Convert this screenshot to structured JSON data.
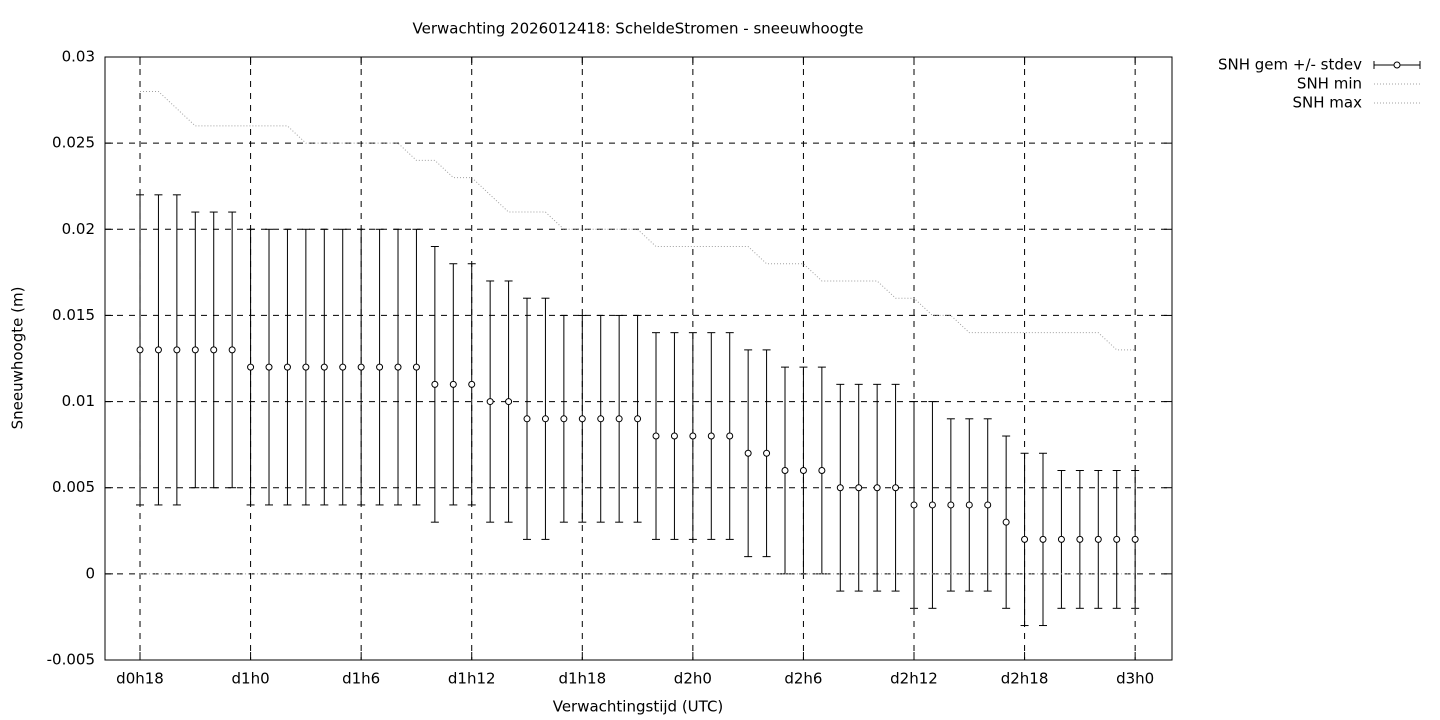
{
  "chart_data": {
    "type": "errorbar",
    "title": "Verwachting 2026012418: ScheldeStromen - sneeuwhoogte",
    "x_label": "Verwachtingstijd (UTC)",
    "y_label": "Sneeuwhoogte (m)",
    "x": [
      18,
      19,
      20,
      21,
      22,
      23,
      24,
      25,
      26,
      27,
      28,
      29,
      30,
      31,
      32,
      33,
      34,
      35,
      36,
      37,
      38,
      39,
      40,
      41,
      42,
      43,
      44,
      45,
      46,
      47,
      48,
      49,
      50,
      51,
      52,
      53,
      54,
      55,
      56,
      57,
      58,
      59,
      60,
      61,
      62,
      63,
      64,
      65,
      66,
      67,
      68,
      69,
      70,
      71,
      72
    ],
    "series": [
      {
        "name": "SNH gem +/- stdev",
        "color": "#000000",
        "values": [
          0.013,
          0.013,
          0.013,
          0.013,
          0.013,
          0.013,
          0.012,
          0.012,
          0.012,
          0.012,
          0.012,
          0.012,
          0.012,
          0.012,
          0.012,
          0.012,
          0.011,
          0.011,
          0.011,
          0.01,
          0.01,
          0.009,
          0.009,
          0.009,
          0.009,
          0.009,
          0.009,
          0.009,
          0.008,
          0.008,
          0.008,
          0.008,
          0.008,
          0.007,
          0.007,
          0.006,
          0.006,
          0.006,
          0.005,
          0.005,
          0.005,
          0.005,
          0.004,
          0.004,
          0.004,
          0.004,
          0.004,
          0.003,
          0.002,
          0.002,
          0.002,
          0.002,
          0.002,
          0.002,
          0.002
        ],
        "errors": [
          0.009,
          0.009,
          0.009,
          0.008,
          0.008,
          0.008,
          0.008,
          0.008,
          0.008,
          0.008,
          0.008,
          0.008,
          0.008,
          0.008,
          0.008,
          0.008,
          0.008,
          0.007,
          0.007,
          0.007,
          0.007,
          0.007,
          0.007,
          0.006,
          0.006,
          0.006,
          0.006,
          0.006,
          0.006,
          0.006,
          0.006,
          0.006,
          0.006,
          0.006,
          0.006,
          0.006,
          0.006,
          0.006,
          0.006,
          0.006,
          0.006,
          0.006,
          0.006,
          0.006,
          0.005,
          0.005,
          0.005,
          0.005,
          0.005,
          0.005,
          0.004,
          0.004,
          0.004,
          0.004,
          0.004
        ]
      },
      {
        "name": "SNH min",
        "color": "#a0a0a0",
        "values": [
          0,
          0,
          0,
          0,
          0,
          0,
          0,
          0,
          0,
          0,
          0,
          0,
          0,
          0,
          0,
          0,
          0,
          0,
          0,
          0,
          0,
          0,
          0,
          0,
          0,
          0,
          0,
          0,
          0,
          0,
          0,
          0,
          0,
          0,
          0,
          0,
          0,
          0,
          0,
          0,
          0,
          0,
          0,
          0,
          0,
          0,
          0,
          0,
          0,
          0,
          0,
          0,
          0,
          0,
          0
        ]
      },
      {
        "name": "SNH max",
        "color": "#a0a0a0",
        "values": [
          0.028,
          0.028,
          0.027,
          0.026,
          0.026,
          0.026,
          0.026,
          0.026,
          0.026,
          0.025,
          0.025,
          0.025,
          0.025,
          0.025,
          0.025,
          0.024,
          0.024,
          0.023,
          0.023,
          0.022,
          0.021,
          0.021,
          0.021,
          0.02,
          0.02,
          0.02,
          0.02,
          0.02,
          0.019,
          0.019,
          0.019,
          0.019,
          0.019,
          0.019,
          0.018,
          0.018,
          0.018,
          0.017,
          0.017,
          0.017,
          0.017,
          0.016,
          0.016,
          0.015,
          0.015,
          0.014,
          0.014,
          0.014,
          0.014,
          0.014,
          0.014,
          0.014,
          0.014,
          0.013,
          0.013
        ]
      }
    ],
    "xlim": [
      16.1,
      74
    ],
    "xticks": [
      {
        "value": 18,
        "label": "d0h18"
      },
      {
        "value": 24,
        "label": "d1h0"
      },
      {
        "value": 30,
        "label": "d1h6"
      },
      {
        "value": 36,
        "label": "d1h12"
      },
      {
        "value": 42,
        "label": "d1h18"
      },
      {
        "value": 48,
        "label": "d2h0"
      },
      {
        "value": 54,
        "label": "d2h6"
      },
      {
        "value": 60,
        "label": "d2h12"
      },
      {
        "value": 66,
        "label": "d2h18"
      },
      {
        "value": 72,
        "label": "d3h0"
      }
    ],
    "ylim": [
      -0.005,
      0.03
    ],
    "yticks": [
      -0.005,
      0,
      0.005,
      0.01,
      0.015,
      0.02,
      0.025,
      0.03
    ],
    "grid": true,
    "legend": "outside-top-right"
  }
}
